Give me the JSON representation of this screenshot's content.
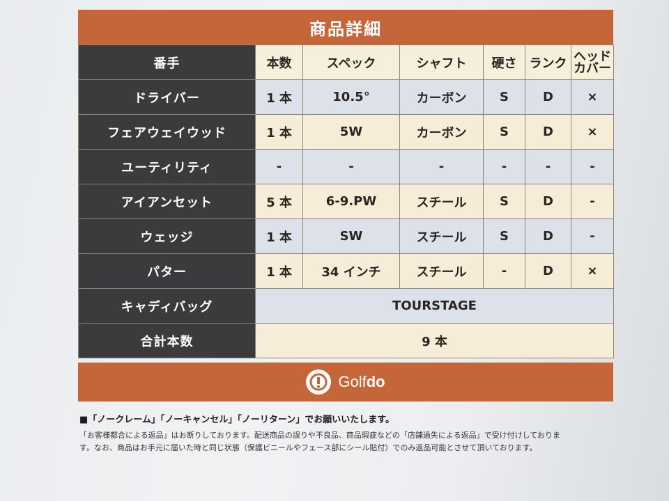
{
  "title": "商品詳細",
  "columns": [
    "番手",
    "本数",
    "スペック",
    "シャフト",
    "硬さ",
    "ランク",
    "ヘッド\nカバー"
  ],
  "column_head_line1": "ヘッド",
  "column_head_line2": "カバー",
  "rows": [
    {
      "name": "ドライバー",
      "count": "1 本",
      "spec": "10.5°",
      "shaft": "カーボン",
      "flex": "S",
      "rank": "D",
      "cover": "×"
    },
    {
      "name": "フェアウェイウッド",
      "count": "1 本",
      "spec": "5W",
      "shaft": "カーボン",
      "flex": "S",
      "rank": "D",
      "cover": "×"
    },
    {
      "name": "ユーティリティ",
      "count": "-",
      "spec": "-",
      "shaft": "-",
      "flex": "-",
      "rank": "-",
      "cover": "-"
    },
    {
      "name": "アイアンセット",
      "count": "5 本",
      "spec": "6-9.PW",
      "shaft": "スチール",
      "flex": "S",
      "rank": "D",
      "cover": "-"
    },
    {
      "name": "ウェッジ",
      "count": "1 本",
      "spec": "SW",
      "shaft": "スチール",
      "flex": "S",
      "rank": "D",
      "cover": "-"
    },
    {
      "name": "パター",
      "count": "1 本",
      "spec": "34 インチ",
      "shaft": "スチール",
      "flex": "-",
      "rank": "D",
      "cover": "×"
    }
  ],
  "caddie_bag": {
    "label": "キャディバッグ",
    "value": "TOURSTAGE"
  },
  "total": {
    "label": "合計本数",
    "value": "9 本"
  },
  "logo": {
    "text_light": "Golf",
    "text_bold": "do",
    "mark": "!"
  },
  "notes": {
    "heading": "■「ノークレーム」「ノーキャンセル」「ノーリターン」でお願いいたします。",
    "line1": "「お客様都合による返品」はお断りしております。配送商品の誤りや不良品、商品瑕疵などの「店舗過失による返品」で受け付けしておりま",
    "line2": "す。なお、商品はお手元に届いた時と同じ状態（保護ビニールやフェース部にシール貼付）でのみ返品可能とさせて頂いております。"
  },
  "colors": {
    "accent": "#c5663a",
    "rowhead": "#3b3b3d",
    "beige": "#f5edd7",
    "blue": "#dde1ea"
  }
}
